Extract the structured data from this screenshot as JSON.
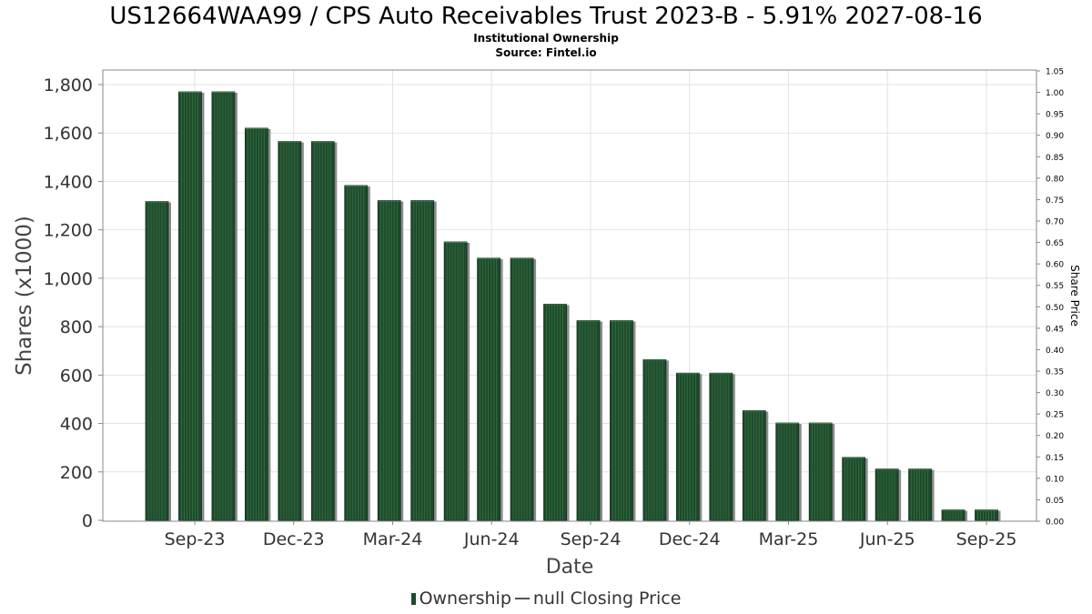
{
  "chart_data": {
    "type": "bar",
    "title": "US12664WAA99 / CPS Auto Receivables Trust 2023-B - 5.91% 2027-08-16",
    "subtitle": "Institutional Ownership",
    "source": "Source: Fintel.io",
    "xlabel": "Date",
    "ylabel": "Shares (x1000)",
    "y2label": "Share Price",
    "ylim": [
      0,
      1860
    ],
    "y2lim": [
      0,
      1.05
    ],
    "yticks": [
      "0",
      "200",
      "400",
      "600",
      "800",
      "1,000",
      "1,200",
      "1,400",
      "1,600",
      "1,800"
    ],
    "y2ticks": [
      "0.00",
      "0.05",
      "0.10",
      "0.15",
      "0.20",
      "0.25",
      "0.30",
      "0.35",
      "0.40",
      "0.45",
      "0.50",
      "0.55",
      "0.60",
      "0.65",
      "0.70",
      "0.75",
      "0.80",
      "0.85",
      "0.90",
      "0.95",
      "1.00",
      "1.05"
    ],
    "xticks": [
      "Sep-23",
      "Dec-23",
      "Mar-24",
      "Jun-24",
      "Sep-24",
      "Dec-24",
      "Mar-25",
      "Jun-25",
      "Sep-25"
    ],
    "grid": true,
    "legend_position": "bottom-center",
    "series": [
      {
        "name": "Ownership",
        "color": "#1f4a2c",
        "values": [
          1317,
          1770,
          1770,
          1620,
          1565,
          1565,
          1383,
          1321,
          1321,
          1150,
          1083,
          1083,
          893,
          825,
          825,
          664,
          608,
          608,
          453,
          402,
          402,
          260,
          212,
          212,
          43,
          43
        ]
      }
    ]
  },
  "legend": {
    "ownership_label": "Ownership",
    "price_label": "null Closing Price"
  }
}
